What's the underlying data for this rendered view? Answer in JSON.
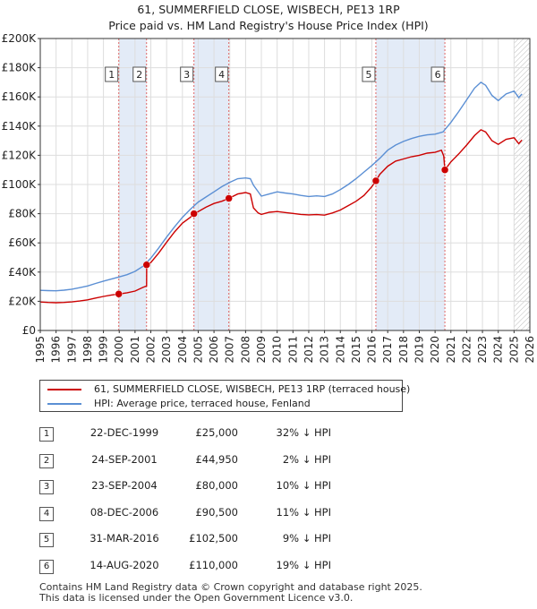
{
  "chart_data": {
    "type": "line",
    "title": "61, SUMMERFIELD CLOSE, WISBECH, PE13 1RP",
    "subtitle": "Price paid vs. HM Land Registry's House Price Index (HPI)",
    "xlabel": "",
    "ylabel": "",
    "xlim": [
      1995,
      2026
    ],
    "ylim": [
      0,
      200000
    ],
    "x_ticks": [
      "1995",
      "1996",
      "1997",
      "1998",
      "1999",
      "2000",
      "2001",
      "2002",
      "2003",
      "2004",
      "2005",
      "2006",
      "2007",
      "2008",
      "2009",
      "2010",
      "2011",
      "2012",
      "2013",
      "2014",
      "2015",
      "2016",
      "2017",
      "2018",
      "2019",
      "2020",
      "2021",
      "2022",
      "2023",
      "2024",
      "2025",
      "2026"
    ],
    "y_ticks": [
      {
        "value": 0,
        "label": "£0"
      },
      {
        "value": 20000,
        "label": "£20K"
      },
      {
        "value": 40000,
        "label": "£40K"
      },
      {
        "value": 60000,
        "label": "£60K"
      },
      {
        "value": 80000,
        "label": "£80K"
      },
      {
        "value": 100000,
        "label": "£100K"
      },
      {
        "value": 120000,
        "label": "£120K"
      },
      {
        "value": 140000,
        "label": "£140K"
      },
      {
        "value": 160000,
        "label": "£160K"
      },
      {
        "value": 180000,
        "label": "£180K"
      },
      {
        "value": 200000,
        "label": "£200K"
      }
    ],
    "grid": true,
    "shaded_periods": [
      [
        1999.97,
        2001.73
      ],
      [
        2004.73,
        2006.94
      ],
      [
        2016.25,
        2020.62
      ]
    ],
    "future_hatch_from": 2025.0,
    "series": [
      {
        "name": "61, SUMMERFIELD CLOSE, WISBECH, PE13 1RP (terraced house)",
        "color": "#cc0000",
        "points": [
          [
            1995.0,
            19500
          ],
          [
            1995.5,
            19200
          ],
          [
            1996.0,
            19000
          ],
          [
            1996.5,
            19200
          ],
          [
            1997.0,
            19600
          ],
          [
            1997.5,
            20200
          ],
          [
            1998.0,
            21000
          ],
          [
            1998.5,
            22200
          ],
          [
            1999.0,
            23300
          ],
          [
            1999.5,
            24300
          ],
          [
            1999.97,
            25000
          ],
          [
            2000.5,
            25800
          ],
          [
            2001.0,
            27000
          ],
          [
            2001.5,
            29500
          ],
          [
            2001.73,
            30500
          ],
          [
            2001.74,
            44950
          ],
          [
            2002.0,
            46500
          ],
          [
            2002.5,
            53000
          ],
          [
            2003.0,
            60500
          ],
          [
            2003.5,
            67500
          ],
          [
            2004.0,
            73500
          ],
          [
            2004.5,
            77500
          ],
          [
            2004.73,
            80000
          ],
          [
            2005.0,
            81500
          ],
          [
            2005.5,
            84500
          ],
          [
            2006.0,
            87000
          ],
          [
            2006.5,
            88500
          ],
          [
            2006.94,
            90500
          ],
          [
            2007.5,
            93500
          ],
          [
            2008.0,
            94500
          ],
          [
            2008.3,
            93500
          ],
          [
            2008.5,
            84000
          ],
          [
            2008.8,
            80500
          ],
          [
            2009.0,
            79500
          ],
          [
            2009.5,
            81000
          ],
          [
            2010.0,
            81500
          ],
          [
            2010.5,
            80800
          ],
          [
            2011.0,
            80200
          ],
          [
            2011.5,
            79500
          ],
          [
            2012.0,
            79200
          ],
          [
            2012.5,
            79400
          ],
          [
            2013.0,
            79000
          ],
          [
            2013.5,
            80500
          ],
          [
            2014.0,
            82500
          ],
          [
            2014.5,
            85500
          ],
          [
            2015.0,
            88500
          ],
          [
            2015.5,
            92500
          ],
          [
            2016.0,
            98500
          ],
          [
            2016.25,
            102500
          ],
          [
            2016.5,
            107000
          ],
          [
            2017.0,
            112500
          ],
          [
            2017.5,
            116000
          ],
          [
            2018.0,
            117500
          ],
          [
            2018.5,
            119000
          ],
          [
            2019.0,
            120000
          ],
          [
            2019.5,
            121500
          ],
          [
            2020.0,
            122000
          ],
          [
            2020.4,
            123500
          ],
          [
            2020.55,
            119500
          ],
          [
            2020.62,
            110000
          ],
          [
            2021.0,
            115500
          ],
          [
            2021.5,
            121000
          ],
          [
            2022.0,
            127000
          ],
          [
            2022.5,
            133500
          ],
          [
            2022.9,
            137500
          ],
          [
            2023.2,
            136000
          ],
          [
            2023.6,
            130000
          ],
          [
            2024.0,
            127500
          ],
          [
            2024.5,
            131000
          ],
          [
            2025.0,
            132000
          ],
          [
            2025.3,
            128000
          ],
          [
            2025.5,
            130500
          ]
        ]
      },
      {
        "name": "HPI: Average price, terraced house, Fenland",
        "color": "#5b8fd4",
        "points": [
          [
            1995.0,
            27500
          ],
          [
            1995.5,
            27300
          ],
          [
            1996.0,
            27200
          ],
          [
            1996.5,
            27600
          ],
          [
            1997.0,
            28300
          ],
          [
            1997.5,
            29300
          ],
          [
            1998.0,
            30500
          ],
          [
            1998.5,
            32200
          ],
          [
            1999.0,
            33800
          ],
          [
            1999.5,
            35200
          ],
          [
            2000.0,
            36700
          ],
          [
            2000.5,
            38200
          ],
          [
            2001.0,
            40500
          ],
          [
            2001.5,
            44000
          ],
          [
            2002.0,
            49500
          ],
          [
            2002.5,
            56500
          ],
          [
            2003.0,
            64000
          ],
          [
            2003.5,
            71000
          ],
          [
            2004.0,
            77500
          ],
          [
            2004.5,
            83000
          ],
          [
            2005.0,
            88000
          ],
          [
            2005.5,
            91500
          ],
          [
            2006.0,
            95000
          ],
          [
            2006.5,
            98500
          ],
          [
            2007.0,
            101500
          ],
          [
            2007.5,
            104000
          ],
          [
            2008.0,
            104500
          ],
          [
            2008.3,
            104000
          ],
          [
            2008.5,
            99500
          ],
          [
            2009.0,
            92000
          ],
          [
            2009.5,
            93500
          ],
          [
            2010.0,
            95000
          ],
          [
            2010.5,
            94200
          ],
          [
            2011.0,
            93500
          ],
          [
            2011.5,
            92500
          ],
          [
            2012.0,
            91800
          ],
          [
            2012.5,
            92200
          ],
          [
            2013.0,
            91800
          ],
          [
            2013.5,
            93500
          ],
          [
            2014.0,
            96500
          ],
          [
            2014.5,
            100000
          ],
          [
            2015.0,
            104000
          ],
          [
            2015.5,
            108500
          ],
          [
            2016.0,
            113000
          ],
          [
            2016.5,
            118000
          ],
          [
            2017.0,
            123500
          ],
          [
            2017.5,
            127000
          ],
          [
            2018.0,
            129500
          ],
          [
            2018.5,
            131500
          ],
          [
            2019.0,
            133000
          ],
          [
            2019.5,
            134000
          ],
          [
            2020.0,
            134500
          ],
          [
            2020.5,
            136000
          ],
          [
            2021.0,
            142500
          ],
          [
            2021.5,
            150000
          ],
          [
            2022.0,
            158000
          ],
          [
            2022.5,
            166000
          ],
          [
            2022.9,
            170000
          ],
          [
            2023.2,
            168000
          ],
          [
            2023.6,
            161000
          ],
          [
            2024.0,
            157500
          ],
          [
            2024.5,
            162000
          ],
          [
            2025.0,
            164000
          ],
          [
            2025.3,
            159500
          ],
          [
            2025.5,
            162000
          ]
        ]
      }
    ],
    "sale_markers": [
      {
        "label": "1",
        "x": 1999.97,
        "y": 25000
      },
      {
        "label": "2",
        "x": 2001.73,
        "y": 44950
      },
      {
        "label": "3",
        "x": 2004.73,
        "y": 80000
      },
      {
        "label": "4",
        "x": 2006.94,
        "y": 90500
      },
      {
        "label": "5",
        "x": 2016.25,
        "y": 102500
      },
      {
        "label": "6",
        "x": 2020.62,
        "y": 110000
      }
    ],
    "legend_position": "below"
  },
  "legend": [
    {
      "label": "61, SUMMERFIELD CLOSE, WISBECH, PE13 1RP (terraced house)",
      "color": "#cc0000"
    },
    {
      "label": "HPI: Average price, terraced house, Fenland",
      "color": "#5b8fd4"
    }
  ],
  "sales": [
    {
      "num": "1",
      "date": "22-DEC-1999",
      "price": "£25,000",
      "hpi": "32% ↓ HPI"
    },
    {
      "num": "2",
      "date": "24-SEP-2001",
      "price": "£44,950",
      "hpi": "2% ↓ HPI"
    },
    {
      "num": "3",
      "date": "23-SEP-2004",
      "price": "£80,000",
      "hpi": "10% ↓ HPI"
    },
    {
      "num": "4",
      "date": "08-DEC-2006",
      "price": "£90,500",
      "hpi": "11% ↓ HPI"
    },
    {
      "num": "5",
      "date": "31-MAR-2016",
      "price": "£102,500",
      "hpi": "9% ↓ HPI"
    },
    {
      "num": "6",
      "date": "14-AUG-2020",
      "price": "£110,000",
      "hpi": "19% ↓ HPI"
    }
  ],
  "footer": {
    "line1": "Contains HM Land Registry data © Crown copyright and database right 2025.",
    "line2": "This data is licensed under the Open Government Licence v3.0."
  }
}
